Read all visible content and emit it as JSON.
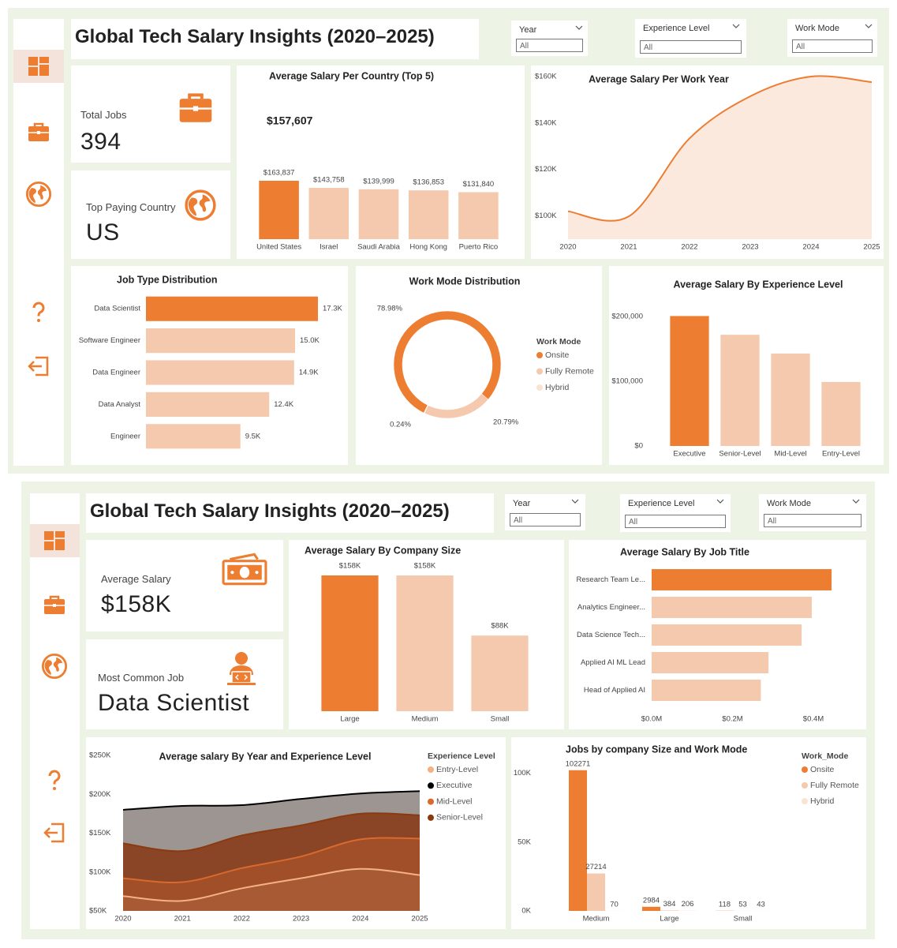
{
  "dashboards": [
    {
      "title": "Global Tech Salary Insights (2020–2025)",
      "filters": [
        {
          "label": "Year",
          "value": "All"
        },
        {
          "label": "Experience Level",
          "value": "All"
        },
        {
          "label": "Work Mode",
          "value": "All"
        }
      ],
      "cards": [
        {
          "label": "Total Jobs",
          "value": 394
        },
        {
          "label": "Top Paying Country",
          "value": "US"
        }
      ]
    },
    {
      "title": "Global Tech Salary Insights (2020–2025)",
      "filters": [
        {
          "label": "Year",
          "value": "All"
        },
        {
          "label": "Experience Level",
          "value": "All"
        },
        {
          "label": "Work Mode",
          "value": "All"
        }
      ],
      "cards": [
        {
          "label": "Average Salary",
          "value": "$158K"
        },
        {
          "label": "Most Common Job",
          "value": "Data Scientist"
        }
      ]
    }
  ],
  "chart_data": [
    {
      "type": "bar",
      "title": "Average Salary Per Country (Top 5)",
      "annotation": "$157,607",
      "categories": [
        "United States",
        "Israel",
        "Saudi Arabia",
        "Hong Kong",
        "Puerto Rico"
      ],
      "values": [
        163837,
        143758,
        139999,
        136853,
        131840
      ],
      "value_labels": [
        "$163,837",
        "$143,758",
        "$139,999",
        "$136,853",
        "$131,840"
      ],
      "colors": [
        "#ed7d31",
        "#f4c9ad",
        "#f4c9ad",
        "#f4c9ad",
        "#f4c9ad"
      ],
      "data_labels": true
    },
    {
      "type": "area",
      "title": "Average Salary Per Work Year",
      "x": [
        2020,
        2021,
        2022,
        2023,
        2024,
        2025
      ],
      "values": [
        102000,
        99800,
        133400,
        151500,
        160000,
        157600
      ],
      "color": "#ed7d31",
      "fill": "#fbe9de",
      "xlim": [
        2020,
        2025
      ],
      "xticks": [
        2020,
        2021,
        2022,
        2023,
        2024,
        2025
      ],
      "ylim": [
        90000,
        160000
      ],
      "yticks": [
        {
          "value": 100000,
          "label": "$100K"
        },
        {
          "value": 120000,
          "label": "$120K"
        },
        {
          "value": 140000,
          "label": "$140K"
        },
        {
          "value": 160000,
          "label": "$160K"
        }
      ]
    },
    {
      "type": "hbar",
      "title": "Job Type Distribution",
      "categories": [
        "Data Scientist",
        "Software Engineer",
        "Data Engineer",
        "Data Analyst",
        "Engineer"
      ],
      "values": [
        17300,
        15000,
        14900,
        12400,
        9500
      ],
      "value_labels": [
        "17.3K",
        "15.0K",
        "14.9K",
        "12.4K",
        "9.5K"
      ],
      "colors": [
        "#ed7d31",
        "#f4c9ad",
        "#f4c9ad",
        "#f4c9ad",
        "#f4c9ad"
      ],
      "data_labels": true
    },
    {
      "type": "donut",
      "title": "Work Mode Distribution",
      "legend_title": "Work Mode",
      "categories": [
        "Onsite",
        "Fully Remote",
        "Hybrid"
      ],
      "values": [
        78.98,
        20.79,
        0.24
      ],
      "value_labels": [
        "78.98%",
        "20.79%",
        "0.24%"
      ],
      "colors": [
        "#ed7d31",
        "#f4c9ad",
        "#fbe3d4"
      ]
    },
    {
      "type": "bar",
      "title": "Average Salary By Experience Level",
      "categories": [
        "Executive",
        "Senior-Level",
        "Mid-Level",
        "Entry-Level"
      ],
      "values": [
        201000,
        172000,
        143000,
        99000
      ],
      "colors": [
        "#ed7d31",
        "#f4c9ad",
        "#f4c9ad",
        "#f4c9ad"
      ],
      "ylim": [
        0,
        210000
      ],
      "yticks": [
        {
          "value": 0,
          "label": "$0"
        },
        {
          "value": 100000,
          "label": "$100,000"
        },
        {
          "value": 200000,
          "label": "$200,000"
        }
      ]
    },
    {
      "type": "bar",
      "title": "Average Salary By Company Size",
      "categories": [
        "Large",
        "Medium",
        "Small"
      ],
      "values": [
        158000,
        158000,
        88000
      ],
      "value_labels": [
        "$158K",
        "$158K",
        "$88K"
      ],
      "colors": [
        "#ed7d31",
        "#f4c9ad",
        "#f4c9ad"
      ],
      "data_labels": true
    },
    {
      "type": "hbar",
      "title": "Average Salary By Job Title",
      "categories": [
        "Research Team Le...",
        "Analytics Engineer...",
        "Data Science Tech...",
        "Applied AI ML Lead",
        "Head of Applied AI"
      ],
      "values": [
        445000,
        396000,
        371000,
        289000,
        270000
      ],
      "colors": [
        "#ed7d31",
        "#f4c9ad",
        "#f4c9ad",
        "#f4c9ad",
        "#f4c9ad"
      ],
      "xlim": [
        0,
        460000
      ],
      "xticks": [
        {
          "value": 0,
          "label": "$0.0M"
        },
        {
          "value": 200000,
          "label": "$0.2M"
        },
        {
          "value": 400000,
          "label": "$0.4M"
        }
      ]
    },
    {
      "type": "area",
      "title": "Average salary By Year and Experience Level",
      "legend_title": "Experience Level",
      "x": [
        2020,
        2021,
        2022,
        2023,
        2024,
        2025
      ],
      "xlim": [
        2020,
        2025
      ],
      "xticks": [
        2020,
        2021,
        2022,
        2023,
        2024,
        2025
      ],
      "ylim": [
        50000,
        250000
      ],
      "yticks": [
        {
          "value": 50000,
          "label": "$50K"
        },
        {
          "value": 100000,
          "label": "$100K"
        },
        {
          "value": 150000,
          "label": "$150K"
        },
        {
          "value": 200000,
          "label": "$200K"
        },
        {
          "value": 250000,
          "label": "$250K"
        }
      ],
      "series": [
        {
          "name": "Entry-Level",
          "color": "#f4b183",
          "fill": "#a85a35",
          "values": [
            69000,
            63000,
            79000,
            92000,
            104000,
            96000
          ]
        },
        {
          "name": "Executive",
          "color": "#000000",
          "fill": "#9c9592",
          "values": [
            180000,
            185000,
            186000,
            194000,
            201000,
            204000
          ]
        },
        {
          "name": "Mid-Level",
          "color": "#d9692d",
          "fill": "#a14f28",
          "values": [
            92000,
            87000,
            105000,
            120000,
            142000,
            143000
          ]
        },
        {
          "name": "Senior-Level",
          "color": "#8b3a10",
          "fill": "#8a4526",
          "values": [
            137000,
            127000,
            147000,
            160000,
            175000,
            173000
          ]
        }
      ]
    },
    {
      "type": "bar",
      "title": "Jobs by company Size and Work Mode",
      "legend_title": "Work_Mode",
      "categories": [
        "Medium",
        "Large",
        "Small"
      ],
      "ylim": [
        0,
        105000
      ],
      "yticks": [
        {
          "value": 0,
          "label": "0K"
        },
        {
          "value": 50000,
          "label": "50K"
        },
        {
          "value": 100000,
          "label": "100K"
        }
      ],
      "series": [
        {
          "name": "Onsite",
          "color": "#ed7d31",
          "values": [
            102271,
            2984,
            118
          ]
        },
        {
          "name": "Fully Remote",
          "color": "#f4c9ad",
          "values": [
            27214,
            384,
            53
          ]
        },
        {
          "name": "Hybrid",
          "color": "#fbe3d4",
          "values": [
            70,
            206,
            43
          ]
        }
      ],
      "data_labels": true
    }
  ]
}
